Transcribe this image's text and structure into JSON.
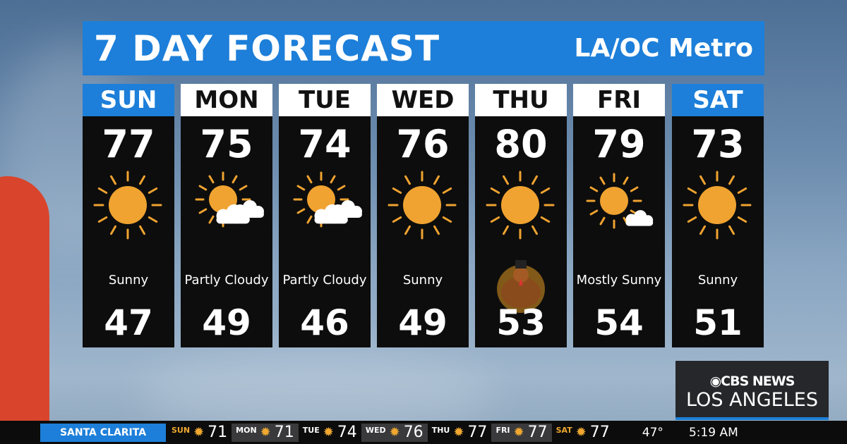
{
  "header": {
    "title": "7 DAY FORECAST",
    "region": "LA/OC Metro"
  },
  "days": [
    {
      "day": "SUN",
      "high": "77",
      "icon": "sunny-icon",
      "condition": "Sunny",
      "low": "47",
      "weekend": true
    },
    {
      "day": "MON",
      "high": "75",
      "icon": "partly-cloudy-icon",
      "condition": "Partly Cloudy",
      "low": "49",
      "weekend": false
    },
    {
      "day": "TUE",
      "high": "74",
      "icon": "partly-cloudy-icon",
      "condition": "Partly Cloudy",
      "low": "46",
      "weekend": false
    },
    {
      "day": "WED",
      "high": "76",
      "icon": "sunny-icon",
      "condition": "Sunny",
      "low": "49",
      "weekend": false
    },
    {
      "day": "THU",
      "high": "80",
      "icon": "sunny-icon",
      "condition": "",
      "low": "53",
      "weekend": false,
      "extra_icon": "turkey-icon"
    },
    {
      "day": "FRI",
      "high": "79",
      "icon": "mostly-sunny-icon",
      "condition": "Mostly Sunny",
      "low": "54",
      "weekend": false
    },
    {
      "day": "SAT",
      "high": "73",
      "icon": "sunny-icon",
      "condition": "Sunny",
      "low": "51",
      "weekend": true
    }
  ],
  "logo": {
    "network": "CBS NEWS",
    "city": "LOS ANGELES"
  },
  "ticker": {
    "location": "SANTA CLARITA",
    "days": [
      {
        "day": "SUN",
        "temp": "71"
      },
      {
        "day": "MON",
        "temp": "71"
      },
      {
        "day": "TUE",
        "temp": "74"
      },
      {
        "day": "WED",
        "temp": "76"
      },
      {
        "day": "THU",
        "temp": "77"
      },
      {
        "day": "FRI",
        "temp": "77"
      },
      {
        "day": "SAT",
        "temp": "77"
      }
    ],
    "current_temp": "47°",
    "time": "5:19 AM"
  },
  "colors": {
    "accent": "#1d7fd9",
    "sun": "#f0a330",
    "panel": "#0d0d0d"
  }
}
